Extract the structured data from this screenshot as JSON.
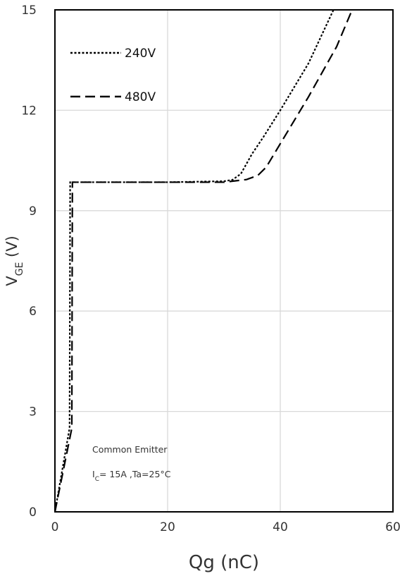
{
  "chart_data": {
    "type": "line",
    "title": "",
    "xlabel": "Qg (nC)",
    "ylabel": {
      "main": "V",
      "sub": "GE",
      "unit": " (V)"
    },
    "xlim": [
      0,
      60
    ],
    "ylim": [
      0,
      15
    ],
    "xticks": [
      0,
      20,
      40,
      60
    ],
    "yticks": [
      0,
      3,
      6,
      9,
      12,
      15
    ],
    "xtick_labels": [
      "0",
      "20",
      "40",
      "60"
    ],
    "ytick_labels": [
      "0",
      "3",
      "6",
      "9",
      "12",
      "15"
    ],
    "grid": true,
    "legend_position": "top-left",
    "series": [
      {
        "name": "240V",
        "style": "dotted",
        "color": "#000000",
        "points": [
          [
            0,
            0
          ],
          [
            2.6,
            2.5
          ],
          [
            2.7,
            9.85
          ],
          [
            10,
            9.85
          ],
          [
            20,
            9.85
          ],
          [
            30,
            9.88
          ],
          [
            31.5,
            9.92
          ],
          [
            33,
            10.1
          ],
          [
            35,
            10.7
          ],
          [
            37,
            11.2
          ],
          [
            40,
            12.0
          ],
          [
            45,
            13.4
          ],
          [
            50,
            15.2
          ]
        ]
      },
      {
        "name": "480V",
        "style": "dashed",
        "color": "#000000",
        "points": [
          [
            0,
            0
          ],
          [
            3.0,
            2.5
          ],
          [
            3.1,
            9.85
          ],
          [
            10,
            9.85
          ],
          [
            20,
            9.85
          ],
          [
            30,
            9.85
          ],
          [
            34,
            9.93
          ],
          [
            36,
            10.05
          ],
          [
            37.5,
            10.3
          ],
          [
            40,
            11.0
          ],
          [
            45,
            12.4
          ],
          [
            50,
            13.9
          ],
          [
            53,
            15.1
          ]
        ]
      }
    ],
    "annotations": [
      {
        "text": "Common Emitter"
      },
      {
        "main": "I",
        "sub": "C",
        "rest": "= 15A ,Ta=25°C"
      }
    ]
  }
}
